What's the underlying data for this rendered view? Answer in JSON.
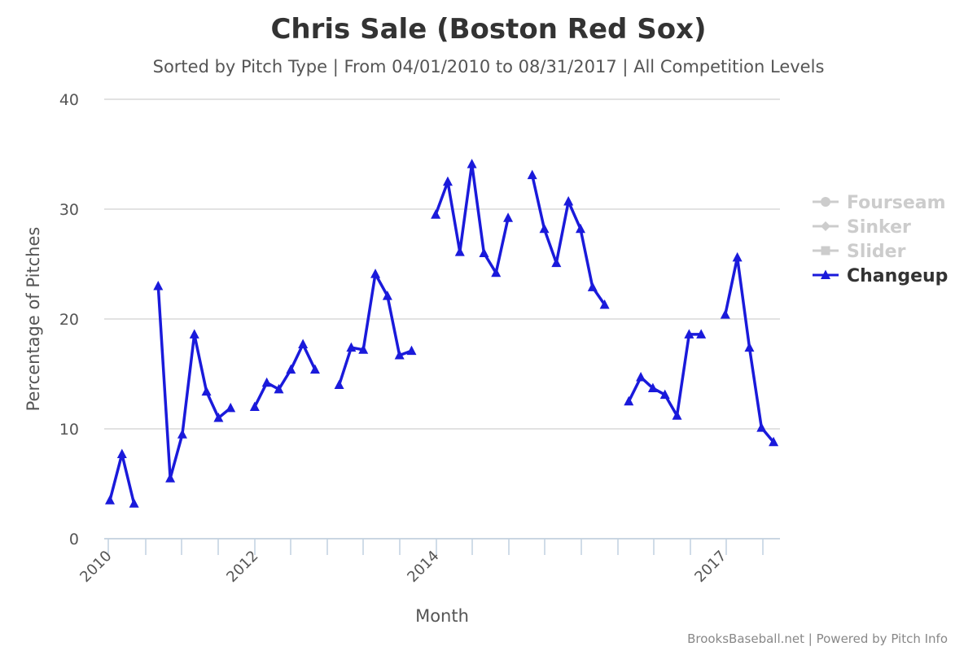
{
  "chart_data": {
    "type": "line",
    "title": "Chris Sale (Boston Red Sox)",
    "subtitle": "Sorted by Pitch Type | From 04/01/2010 to 08/31/2017 | All Competition Levels",
    "xlabel": "Month",
    "ylabel": "Percentage of Pitches",
    "ylim": [
      0,
      40
    ],
    "yticks": [
      0,
      10,
      20,
      30,
      40
    ],
    "xticks": [
      "2010",
      "2012",
      "2014",
      "2017"
    ],
    "grid": true,
    "legend_position": "right",
    "legend": [
      {
        "name": "Fourseam",
        "marker": "circle",
        "active": false,
        "color": "#cccccc"
      },
      {
        "name": "Sinker",
        "marker": "diamond",
        "active": false,
        "color": "#cccccc"
      },
      {
        "name": "Slider",
        "marker": "square",
        "active": false,
        "color": "#cccccc"
      },
      {
        "name": "Changeup",
        "marker": "triangle",
        "active": true,
        "color": "#1a1adb"
      }
    ],
    "series": [
      {
        "name": "Changeup",
        "color": "#1a1adb",
        "segments": [
          [
            [
              0,
              3.5
            ],
            [
              1,
              7.7
            ],
            [
              2,
              3.2
            ]
          ],
          [
            [
              4,
              23.0
            ],
            [
              5,
              5.5
            ],
            [
              6,
              9.5
            ],
            [
              7,
              18.6
            ],
            [
              8,
              13.4
            ],
            [
              9,
              11.0
            ],
            [
              10,
              11.9
            ]
          ],
          [
            [
              12,
              12.0
            ],
            [
              13,
              14.2
            ],
            [
              14,
              13.6
            ],
            [
              15,
              15.4
            ],
            [
              16,
              17.7
            ],
            [
              17,
              15.4
            ]
          ],
          [
            [
              19,
              14.0
            ],
            [
              20,
              17.4
            ],
            [
              21,
              17.2
            ],
            [
              22,
              24.1
            ],
            [
              23,
              22.1
            ],
            [
              24,
              16.7
            ],
            [
              25,
              17.1
            ]
          ],
          [
            [
              27,
              29.5
            ],
            [
              28,
              32.5
            ],
            [
              29,
              26.1
            ],
            [
              30,
              34.1
            ],
            [
              31,
              26.0
            ],
            [
              32,
              24.2
            ],
            [
              33,
              29.2
            ]
          ],
          [
            [
              35,
              33.1
            ],
            [
              36,
              28.2
            ],
            [
              37,
              25.1
            ],
            [
              38,
              30.7
            ],
            [
              39,
              28.2
            ],
            [
              40,
              22.9
            ],
            [
              41,
              21.3
            ]
          ],
          [
            [
              43,
              12.5
            ],
            [
              44,
              14.7
            ],
            [
              45,
              13.7
            ],
            [
              46,
              13.1
            ],
            [
              47,
              11.2
            ],
            [
              48,
              18.6
            ],
            [
              49,
              18.6
            ]
          ],
          [
            [
              51,
              20.4
            ],
            [
              52,
              25.6
            ],
            [
              53,
              17.4
            ],
            [
              54,
              10.1
            ],
            [
              55,
              8.8
            ]
          ]
        ]
      }
    ]
  },
  "credits": "BrooksBaseball.net | Powered by Pitch Info"
}
